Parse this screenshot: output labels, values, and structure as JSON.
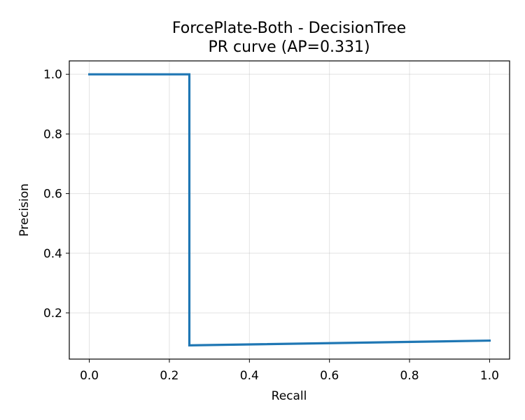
{
  "chart_data": {
    "type": "line",
    "title": "ForcePlate-Both - DecisionTree",
    "subtitle": "PR curve (AP=0.331)",
    "xlabel": "Recall",
    "ylabel": "Precision",
    "xlim": [
      -0.05,
      1.05
    ],
    "ylim": [
      0.045,
      1.045
    ],
    "xticks": [
      0.0,
      0.2,
      0.4,
      0.6,
      0.8,
      1.0
    ],
    "xtick_labels": [
      "0.0",
      "0.2",
      "0.4",
      "0.6",
      "0.8",
      "1.0"
    ],
    "yticks": [
      0.2,
      0.4,
      0.6,
      0.8,
      1.0
    ],
    "ytick_labels": [
      "0.2",
      "0.4",
      "0.6",
      "0.8",
      "1.0"
    ],
    "grid": true,
    "line_color": "#1f77b4",
    "series": [
      {
        "x": [
          0.0,
          0.25,
          0.25,
          1.0
        ],
        "y": [
          1.0,
          1.0,
          0.091,
          0.107
        ]
      }
    ]
  }
}
